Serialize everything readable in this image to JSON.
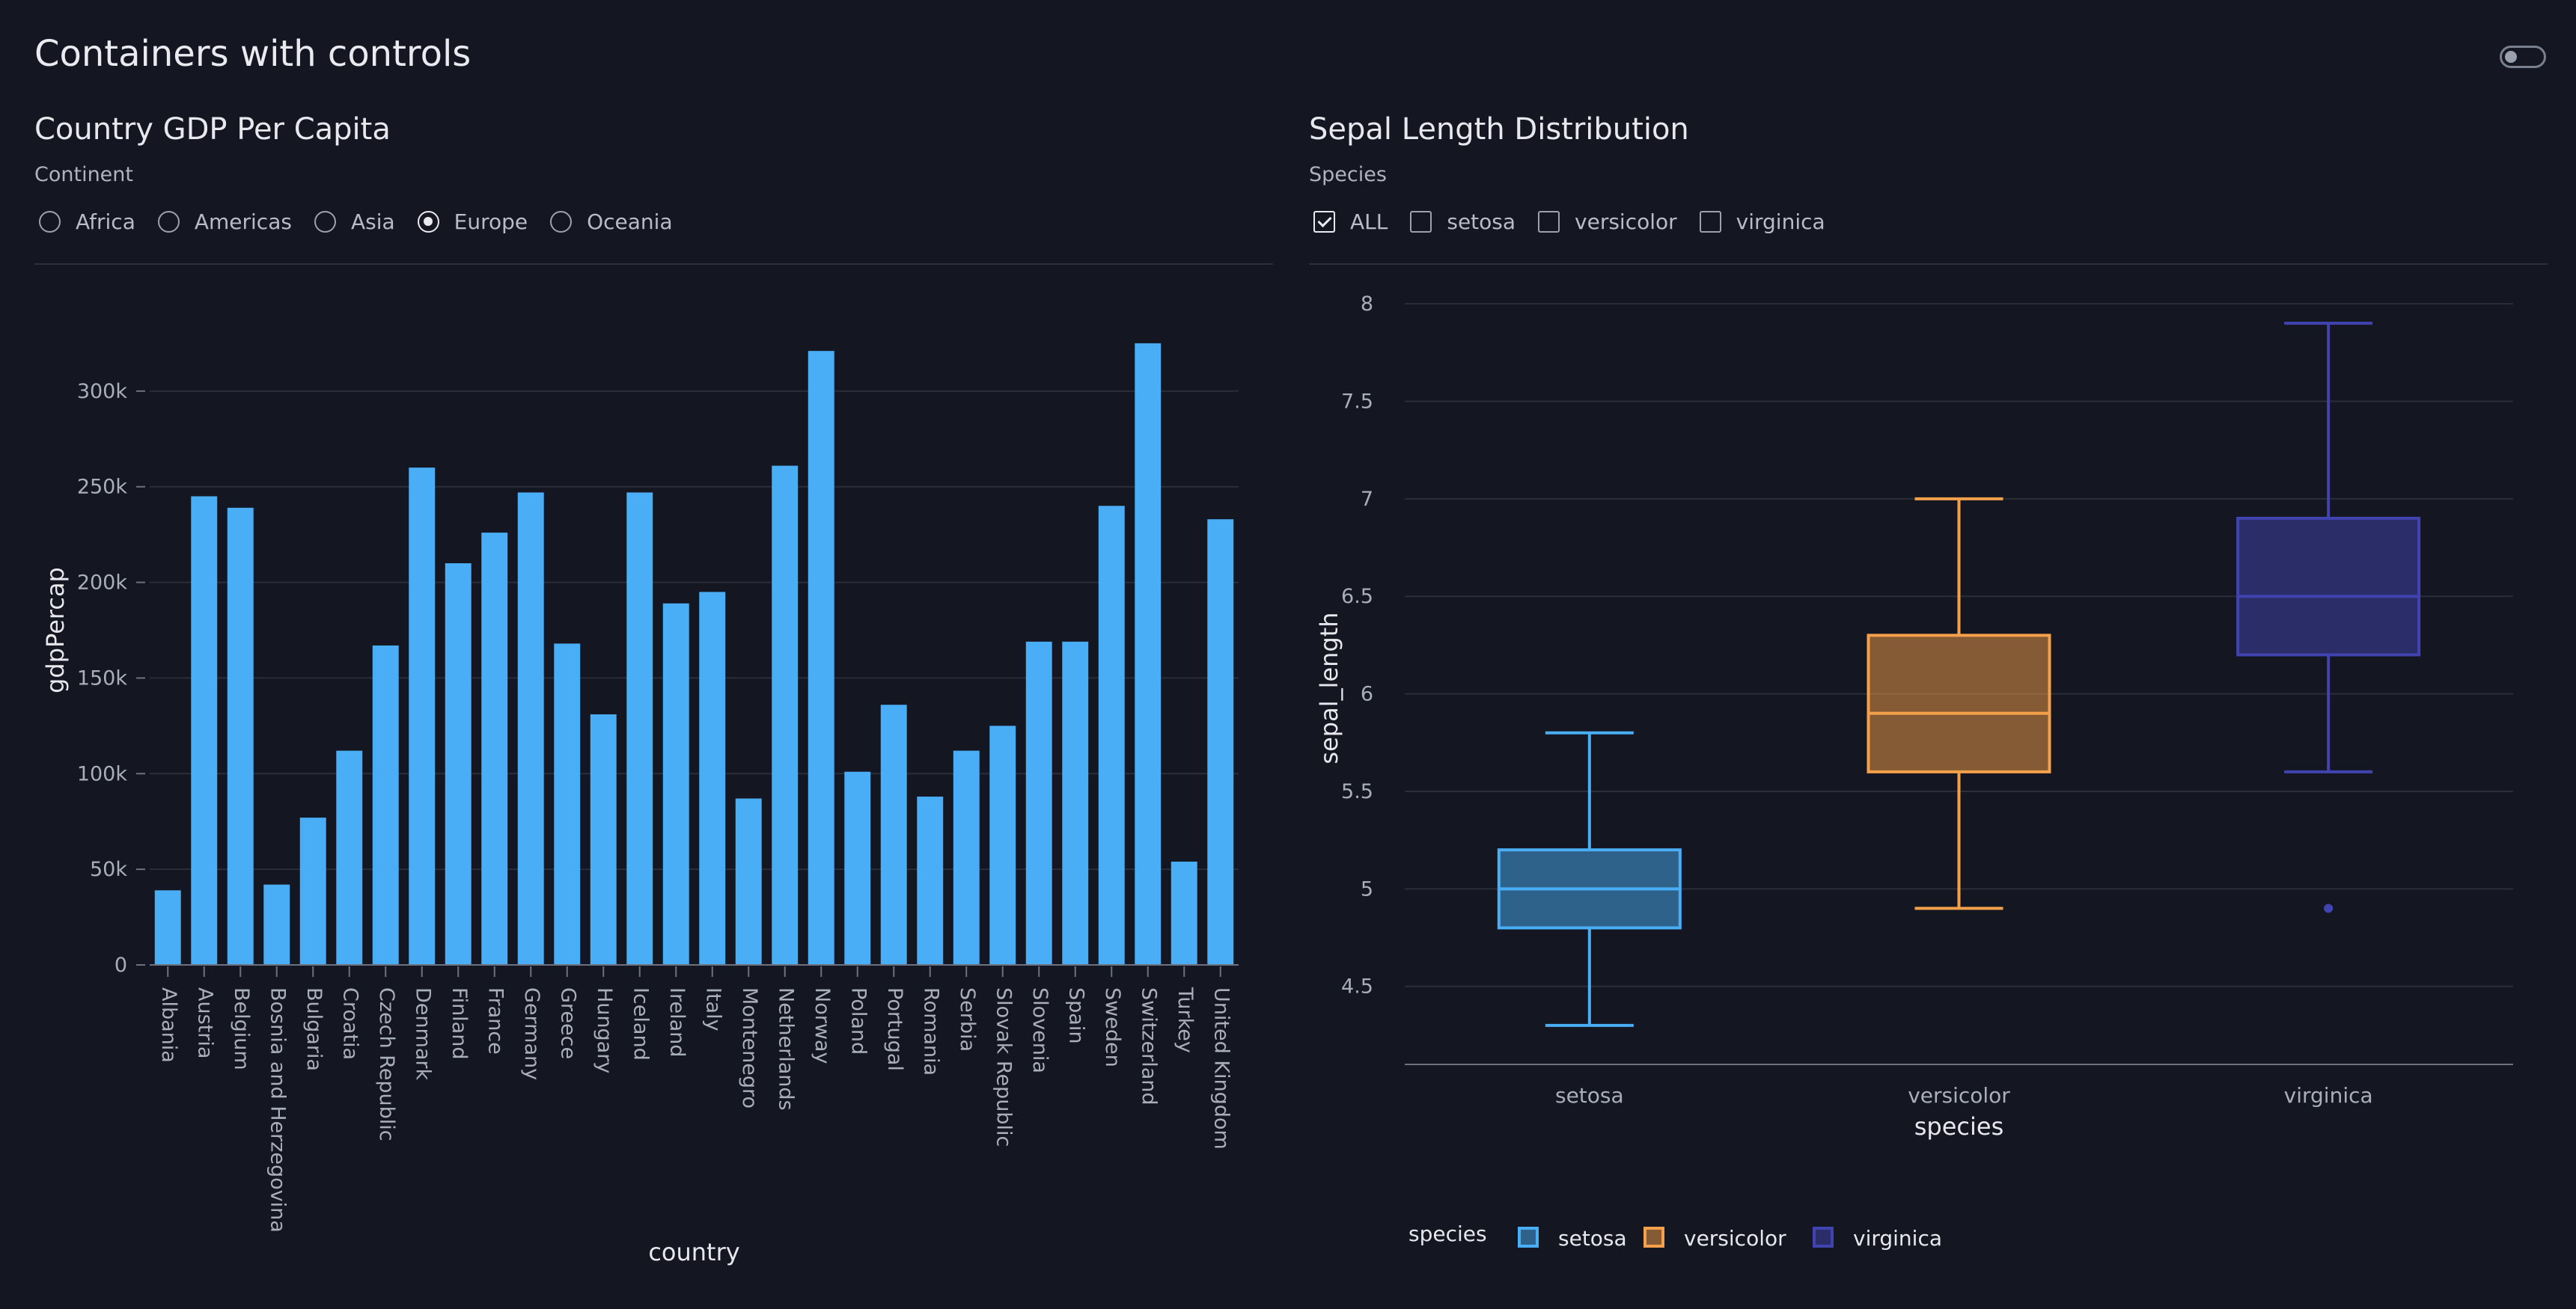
{
  "page": {
    "title": "Containers with controls"
  },
  "colors": {
    "background": "#141721",
    "bar": "#4aaef6",
    "setosa": "#4aaef6",
    "versicolor": "#f5a04a",
    "virginica": "#4143b0",
    "grid": "#2a2e38",
    "tick_text": "#a9aebb"
  },
  "left": {
    "title": "Country GDP Per Capita",
    "control_label": "Continent",
    "options": [
      {
        "label": "Africa",
        "checked": false
      },
      {
        "label": "Americas",
        "checked": false
      },
      {
        "label": "Asia",
        "checked": false
      },
      {
        "label": "Europe",
        "checked": true
      },
      {
        "label": "Oceania",
        "checked": false
      }
    ]
  },
  "right": {
    "title": "Sepal Length Distribution",
    "control_label": "Species",
    "options": [
      {
        "label": "ALL",
        "checked": true
      },
      {
        "label": "setosa",
        "checked": false
      },
      {
        "label": "versicolor",
        "checked": false
      },
      {
        "label": "virginica",
        "checked": false
      }
    ]
  },
  "chart_data": [
    {
      "type": "bar",
      "xlabel": "country",
      "ylabel": "gdpPercap",
      "ylim": [
        0,
        350000
      ],
      "yticks": [
        0,
        50000,
        100000,
        150000,
        200000,
        250000,
        300000
      ],
      "ytick_labels": [
        "0",
        "50k",
        "100k",
        "150k",
        "200k",
        "250k",
        "300k"
      ],
      "grid": true,
      "categories": [
        "Albania",
        "Austria",
        "Belgium",
        "Bosnia and Herzegovina",
        "Bulgaria",
        "Croatia",
        "Czech Republic",
        "Denmark",
        "Finland",
        "France",
        "Germany",
        "Greece",
        "Hungary",
        "Iceland",
        "Ireland",
        "Italy",
        "Montenegro",
        "Netherlands",
        "Norway",
        "Poland",
        "Portugal",
        "Romania",
        "Serbia",
        "Slovak Republic",
        "Slovenia",
        "Spain",
        "Sweden",
        "Switzerland",
        "Turkey",
        "United Kingdom"
      ],
      "values": [
        39000,
        245000,
        239000,
        42000,
        77000,
        112000,
        167000,
        260000,
        210000,
        226000,
        247000,
        168000,
        131000,
        247000,
        189000,
        195000,
        87000,
        261000,
        321000,
        101000,
        136000,
        88000,
        112000,
        125000,
        169000,
        169000,
        240000,
        325000,
        54000,
        233000
      ]
    },
    {
      "type": "box",
      "xlabel": "species",
      "ylabel": "sepal_length",
      "ylim": [
        4.1,
        8.1
      ],
      "yticks": [
        4.5,
        5,
        5.5,
        6,
        6.5,
        7,
        7.5,
        8
      ],
      "ytick_labels": [
        "4.5",
        "5",
        "5.5",
        "6",
        "6.5",
        "7",
        "7.5",
        "8"
      ],
      "grid": true,
      "categories": [
        "setosa",
        "versicolor",
        "virginica"
      ],
      "boxes": [
        {
          "name": "setosa",
          "min": 4.3,
          "q1": 4.8,
          "median": 5.0,
          "q3": 5.2,
          "max": 5.8,
          "outliers": []
        },
        {
          "name": "versicolor",
          "min": 4.9,
          "q1": 5.6,
          "median": 5.9,
          "q3": 6.3,
          "max": 7.0,
          "outliers": []
        },
        {
          "name": "virginica",
          "min": 5.6,
          "q1": 6.2,
          "median": 6.5,
          "q3": 6.9,
          "max": 7.9,
          "outliers": [
            4.9
          ]
        }
      ],
      "legend": {
        "title": "species",
        "placement": "bottom-left",
        "entries": [
          "setosa",
          "versicolor",
          "virginica"
        ]
      }
    }
  ]
}
